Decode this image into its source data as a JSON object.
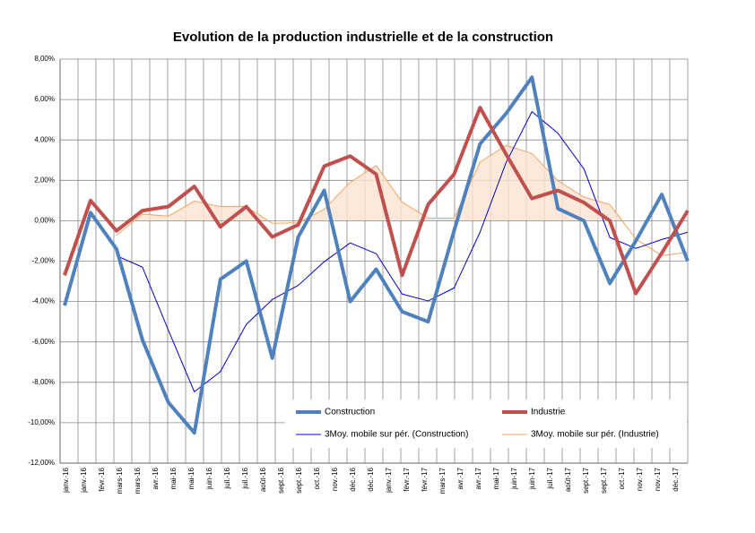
{
  "chart_data": {
    "type": "line",
    "title": "Evolution de la production industrielle et de la construction",
    "x_tick_labels": [
      "janv.-16",
      "janv.-16",
      "févr.-16",
      "mars-16",
      "mars-16",
      "avr.-16",
      "mai-16",
      "mai-16",
      "juin-16",
      "juil.-16",
      "juil.-16",
      "août-16",
      "sept.-16",
      "sept.-16",
      "oct.-16",
      "nov.-16",
      "déc.-16",
      "déc.-16",
      "janv.-17",
      "févr.-17",
      "févr.-17",
      "mars-17",
      "avr.-17",
      "avr.-17",
      "mai-17",
      "juin-17",
      "juin-17",
      "juil.-17",
      "août-17",
      "sept.-17",
      "sept.-17",
      "oct.-17",
      "nov.-17",
      "nov.-17",
      "déc.-17"
    ],
    "ylim": [
      -12,
      8
    ],
    "yticks": [
      {
        "value": -12,
        "label": "-12,00%"
      },
      {
        "value": -10,
        "label": "-10,00%"
      },
      {
        "value": -8,
        "label": "-8,00%"
      },
      {
        "value": -6,
        "label": "-6,00%"
      },
      {
        "value": -4,
        "label": "-4,00%"
      },
      {
        "value": -2,
        "label": "-2,00%"
      },
      {
        "value": 0,
        "label": "0,00%"
      },
      {
        "value": 2,
        "label": "2,00%"
      },
      {
        "value": 4,
        "label": "4,00%"
      },
      {
        "value": 6,
        "label": "6,00%"
      },
      {
        "value": 8,
        "label": "8,00%"
      }
    ],
    "grid": true,
    "series": [
      {
        "name": "Construction",
        "color": "#4f81bd",
        "width": 4,
        "values": [
          -4.2,
          0.4,
          -1.4,
          -5.9,
          -9.0,
          -10.5,
          -2.9,
          -2.0,
          -6.8,
          -0.8,
          1.5,
          -4.0,
          -2.4,
          -4.5,
          -5.0,
          -0.5,
          3.8,
          5.3,
          7.1,
          0.6,
          0.0,
          -3.1,
          -1.0,
          1.3,
          -2.0
        ]
      },
      {
        "name": "Industrie",
        "color": "#c0504d",
        "width": 4,
        "values": [
          -2.7,
          1.0,
          -0.5,
          0.5,
          0.7,
          1.7,
          -0.3,
          0.7,
          -0.8,
          -0.2,
          2.7,
          3.2,
          2.3,
          -2.7,
          0.8,
          2.3,
          5.6,
          3.3,
          1.1,
          1.5,
          0.9,
          0.0,
          -3.6,
          -1.6,
          0.5
        ]
      },
      {
        "name": "3Moy. mobile sur pér. (Construction)",
        "color": "#0000cc",
        "width": 1,
        "values": [
          null,
          null,
          -1.73,
          -2.3,
          -5.43,
          -8.47,
          -7.47,
          -5.13,
          -3.9,
          -3.2,
          -2.03,
          -1.1,
          -1.63,
          -3.63,
          -3.97,
          -3.33,
          -0.57,
          2.87,
          5.4,
          4.33,
          2.57,
          -0.83,
          -1.37,
          -0.93,
          -0.57
        ]
      },
      {
        "name": "3Moy. mobile sur pér. (Industrie)",
        "color": "#f4a460",
        "width": 1,
        "fill": "#fde3d3",
        "values": [
          null,
          null,
          -0.73,
          0.33,
          0.23,
          0.97,
          0.7,
          0.7,
          -0.13,
          -0.1,
          0.57,
          1.9,
          2.73,
          0.93,
          0.13,
          0.13,
          2.9,
          3.73,
          3.33,
          1.97,
          1.17,
          0.8,
          -0.9,
          -1.73,
          -1.57
        ]
      }
    ]
  }
}
